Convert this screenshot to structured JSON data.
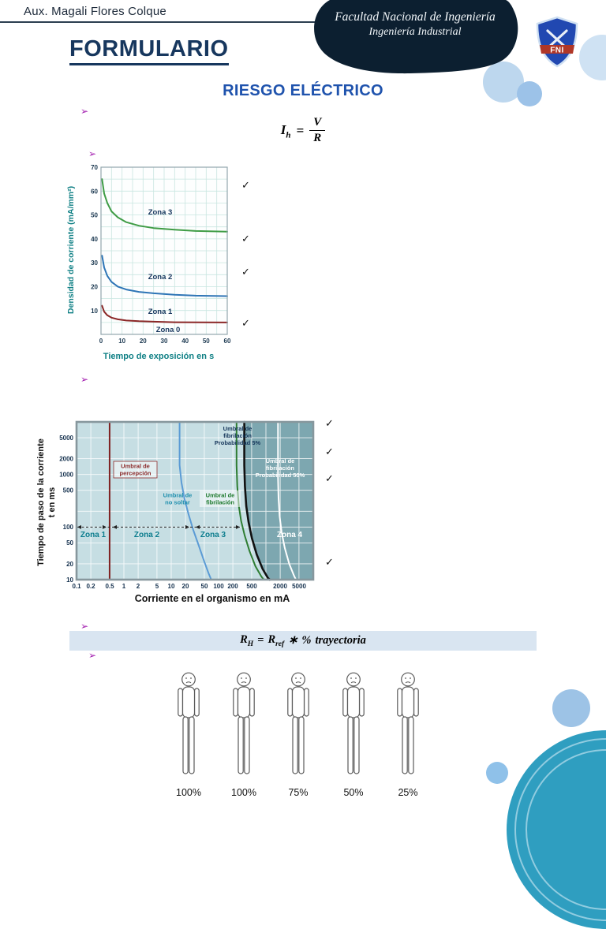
{
  "page": {
    "author": "Aux. Magali Flores Colque",
    "faculty_line1": "Facultad Nacional de Ingeniería",
    "faculty_line2": "Ingeniería Industrial",
    "logo_text": "FNI",
    "title": "FORMULARIO",
    "subtitle": "RIESGO ELÉCTRICO",
    "bullet": "➢",
    "check": "✓"
  },
  "formulas": {
    "ohm": {
      "lhs": "I",
      "lhs_sub": "h",
      "equals": "=",
      "numerator": "V",
      "denominator": "R"
    },
    "resistance": {
      "lhs": "R",
      "lhs_sub": "H",
      "equals": "=",
      "rhs_base": "R",
      "rhs_sub": "ref",
      "operator": "∗",
      "percent": "%",
      "tail": "trayectoria"
    }
  },
  "colors": {
    "accent_navy": "#17375e",
    "subtitle_blue": "#1f53ad",
    "bullet_magenta": "#a21caf",
    "axis_teal": "#0e7f84",
    "formula_bar_bg": "#d9e5f1",
    "chart2_panel": "#c6dee3",
    "chart2_zone4": "#7da7b0",
    "deco_teal": "#2f9ec0",
    "deco_blue": "#9dc3e6"
  },
  "chart_data": [
    {
      "type": "line",
      "title": "",
      "xlabel": "Tiempo de exposición en s",
      "ylabel": "Densidad de corriente (mA/mm²)",
      "xlim": [
        0,
        60
      ],
      "ylim": [
        0,
        70
      ],
      "x_ticks": [
        0,
        10,
        20,
        30,
        40,
        50,
        60
      ],
      "y_ticks": [
        70,
        60,
        50,
        40,
        30,
        20,
        10
      ],
      "zones": [
        "Zona 3",
        "Zona 2",
        "Zona 1",
        "Zona 0"
      ],
      "grid": true,
      "series": [
        {
          "name": "Límite Zona 2 / Zona 3",
          "color": "#3f9c45",
          "points": [
            [
              0.5,
              65
            ],
            [
              1.5,
              59
            ],
            [
              3,
              55
            ],
            [
              5,
              51.5
            ],
            [
              8,
              49
            ],
            [
              12,
              47
            ],
            [
              18,
              45.5
            ],
            [
              25,
              44.5
            ],
            [
              35,
              43.8
            ],
            [
              45,
              43.3
            ],
            [
              60,
              43
            ]
          ]
        },
        {
          "name": "Límite Zona 1 / Zona 2",
          "color": "#2e75b6",
          "points": [
            [
              0.5,
              33
            ],
            [
              1.5,
              28
            ],
            [
              3,
              24.5
            ],
            [
              5,
              22
            ],
            [
              8,
              20
            ],
            [
              12,
              18.8
            ],
            [
              18,
              17.8
            ],
            [
              25,
              17.2
            ],
            [
              35,
              16.6
            ],
            [
              45,
              16.2
            ],
            [
              60,
              16
            ]
          ]
        },
        {
          "name": "Límite Zona 0 / Zona 1",
          "color": "#8b2727",
          "points": [
            [
              0.5,
              12
            ],
            [
              1.5,
              9.5
            ],
            [
              3,
              8
            ],
            [
              5,
              7
            ],
            [
              8,
              6.3
            ],
            [
              12,
              5.8
            ],
            [
              18,
              5.5
            ],
            [
              25,
              5.3
            ],
            [
              35,
              5.1
            ],
            [
              60,
              5
            ]
          ]
        }
      ]
    },
    {
      "type": "line",
      "title": "",
      "x_scale": "log",
      "y_scale": "log",
      "xlabel": "Corriente en el organismo en mA",
      "ylabel": "Tiempo de paso de la corriente t en ms",
      "ylabel_lines": [
        "Tiempo de paso de la corriente",
        "t en ms"
      ],
      "xlim": [
        0.1,
        10000
      ],
      "ylim": [
        10,
        10000
      ],
      "x_ticks": [
        0.1,
        0.2,
        0.5,
        1,
        2,
        5,
        10,
        20,
        50,
        100,
        200,
        500,
        2000,
        5000
      ],
      "y_ticks": [
        5000,
        2000,
        1000,
        500,
        100,
        50,
        20,
        10
      ],
      "zones": [
        "Zona 1",
        "Zona 2",
        "Zona 3",
        "Zona 4"
      ],
      "grid": true,
      "annotations": {
        "percepcion": [
          "Umbral de",
          "percepción"
        ],
        "no_soltar": [
          "Umbral de",
          "no soltar"
        ],
        "fibrilacion": [
          "Umbral de",
          "fibrilación"
        ],
        "prob5": [
          "Umbral de",
          "fibrilación",
          "Probabilidad 5%"
        ],
        "prob50": [
          "Umbral de",
          "fibrilación",
          "Probabilidad 50%"
        ]
      },
      "curves": [
        {
          "name": "Umbral de percepción",
          "color": "#7e2020",
          "points": [
            [
              0.5,
              10000
            ],
            [
              0.5,
              10
            ]
          ]
        },
        {
          "name": "Umbral de no soltar",
          "color": "#5b9bd5",
          "points": [
            [
              15,
              10000
            ],
            [
              15,
              1500
            ],
            [
              16.5,
              700
            ],
            [
              19,
              350
            ],
            [
              23,
              180
            ],
            [
              29,
              90
            ],
            [
              38,
              45
            ],
            [
              50,
              22
            ],
            [
              62,
              13
            ],
            [
              70,
              10
            ]
          ]
        },
        {
          "name": "Umbral de fibrilación",
          "color": "#2e7d32",
          "points": [
            [
              240,
              10000
            ],
            [
              240,
              1500
            ],
            [
              248,
              600
            ],
            [
              268,
              250
            ],
            [
              300,
              130
            ],
            [
              355,
              70
            ],
            [
              450,
              35
            ],
            [
              600,
              18
            ],
            [
              800,
              11.5
            ],
            [
              900,
              10
            ]
          ]
        },
        {
          "name": "Umbral de fibrilación probabilidad 5%",
          "color": "#111111",
          "points": [
            [
              350,
              10000
            ],
            [
              350,
              1500
            ],
            [
              360,
              600
            ],
            [
              385,
              250
            ],
            [
              430,
              125
            ],
            [
              505,
              62
            ],
            [
              640,
              30
            ],
            [
              850,
              16
            ],
            [
              1100,
              10.8
            ],
            [
              1200,
              10
            ]
          ]
        },
        {
          "name": "Umbral de fibrilación probabilidad 50%",
          "color": "#ffffff",
          "points": [
            [
              1800,
              10000
            ],
            [
              1800,
              900
            ],
            [
              1850,
              350
            ],
            [
              1950,
              160
            ],
            [
              2150,
              80
            ],
            [
              2500,
              40
            ],
            [
              3100,
              20
            ],
            [
              3900,
              12
            ],
            [
              4300,
              10
            ]
          ]
        }
      ]
    }
  ],
  "bodies": {
    "percentages": [
      "100%",
      "100%",
      "75%",
      "50%",
      "25%"
    ]
  }
}
